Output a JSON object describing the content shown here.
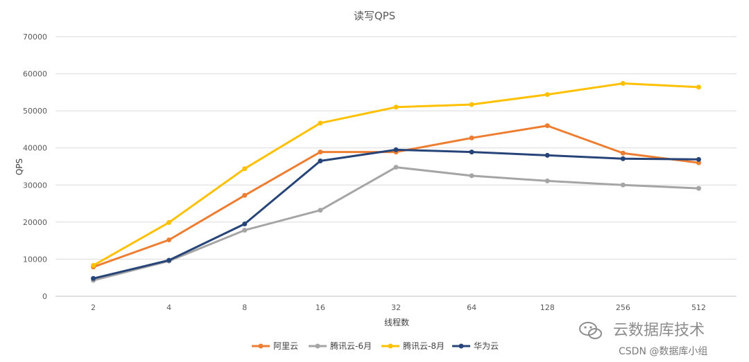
{
  "chart_data": {
    "type": "line",
    "title": "读写QPS",
    "xlabel": "线程数",
    "ylabel": "QPS",
    "categories": [
      "2",
      "4",
      "8",
      "16",
      "32",
      "64",
      "128",
      "256",
      "512"
    ],
    "ylim": [
      0,
      70000
    ],
    "yticks": [
      0,
      10000,
      20000,
      30000,
      40000,
      50000,
      60000,
      70000
    ],
    "grid": true,
    "legend_position": "bottom",
    "series": [
      {
        "name": "阿里云",
        "color": "#ed7d31",
        "values": [
          7900,
          15200,
          27200,
          38900,
          38900,
          42700,
          46000,
          38600,
          36000
        ]
      },
      {
        "name": "腾讯云-6月",
        "color": "#a5a5a5",
        "values": [
          4300,
          9500,
          17800,
          23200,
          34800,
          32500,
          31100,
          30000,
          29100
        ]
      },
      {
        "name": "腾讯云-8月",
        "color": "#ffc000",
        "values": [
          8300,
          19900,
          34400,
          46700,
          51000,
          51700,
          54400,
          57400,
          56400
        ]
      },
      {
        "name": "华为云",
        "color": "#264478",
        "values": [
          4800,
          9700,
          19500,
          36500,
          39500,
          38900,
          38000,
          37100,
          36900
        ]
      }
    ]
  },
  "watermark": {
    "line1": "云数据库技术",
    "line2": "CSDN @数据库小组",
    "icon": "wechat-icon"
  }
}
